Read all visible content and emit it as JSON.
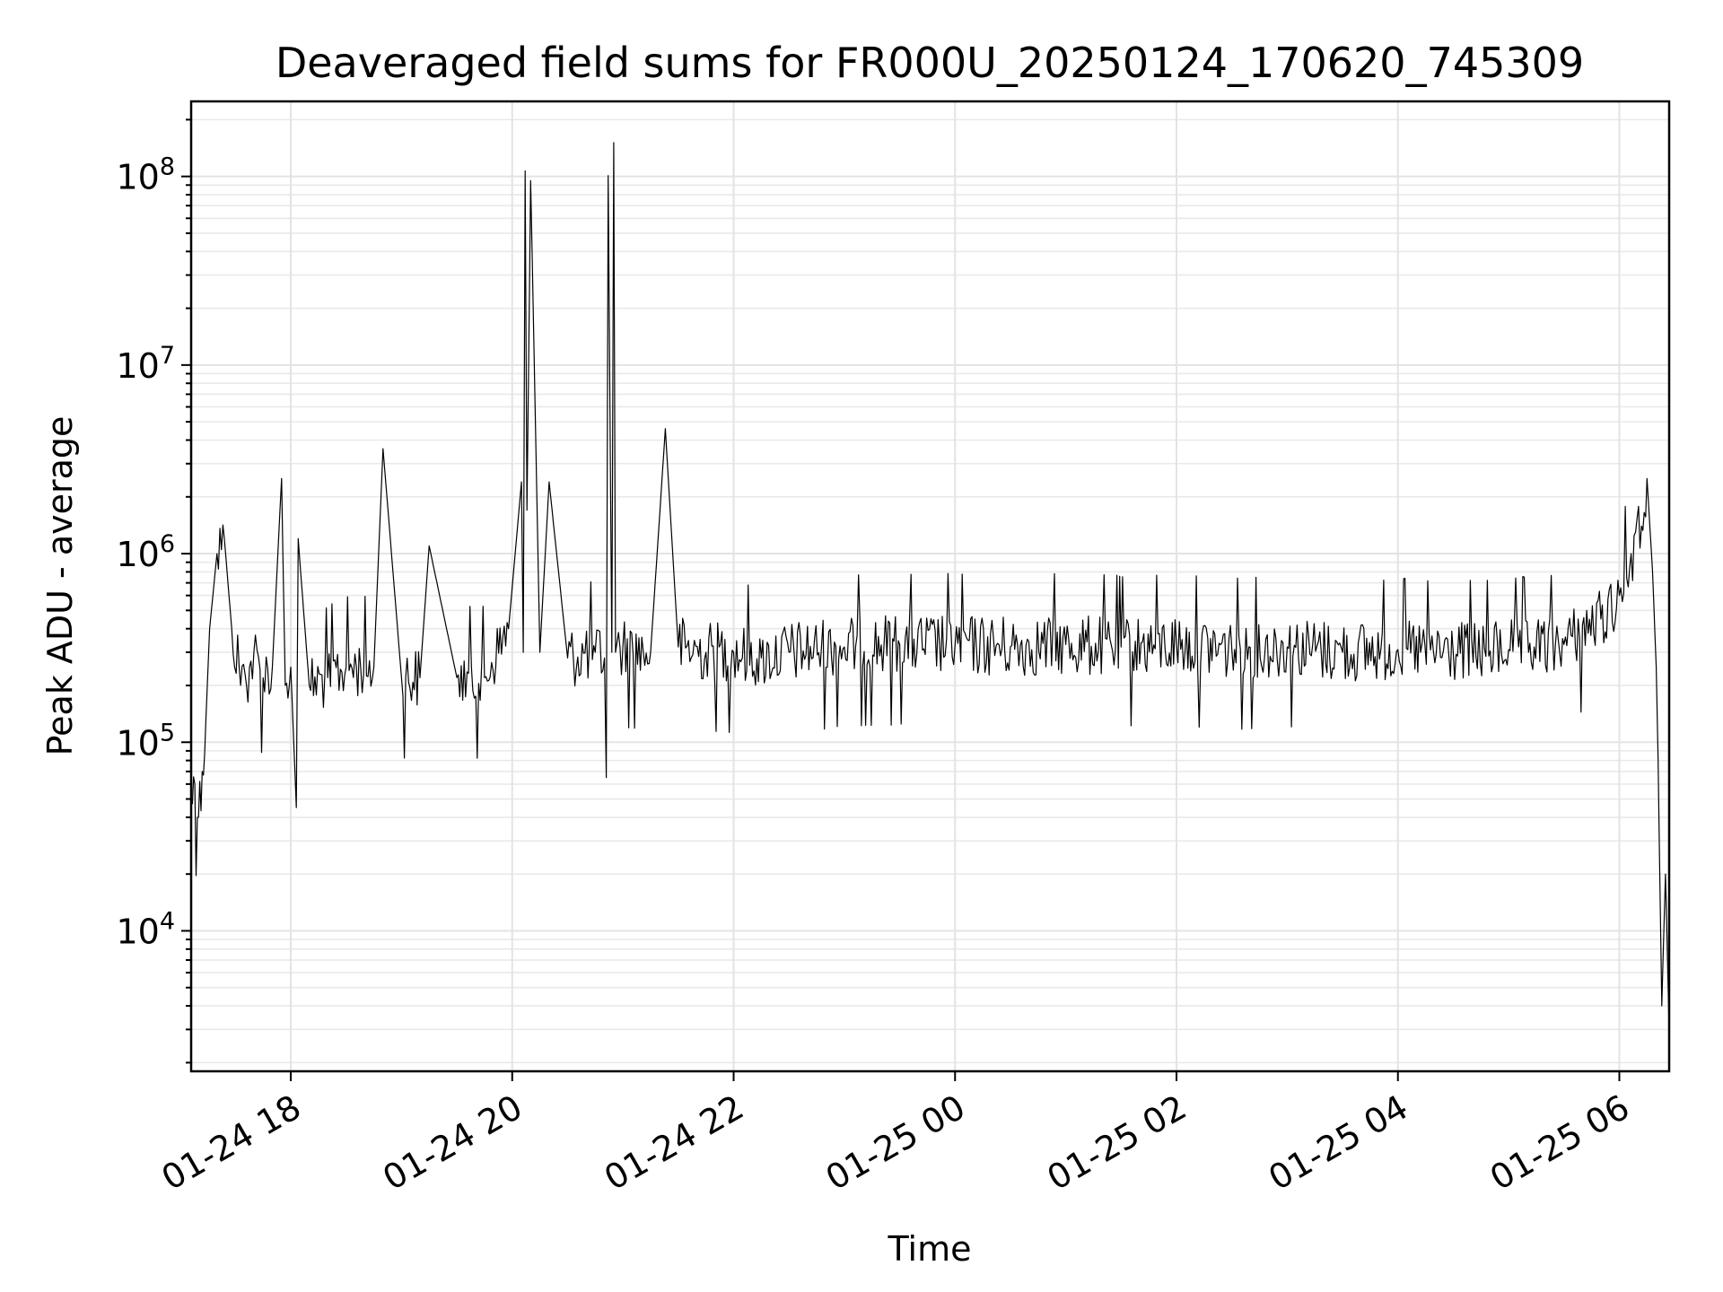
{
  "chart_data": {
    "type": "line",
    "title": "Deaveraged field sums for FR000U_20250124_170620_745309",
    "xlabel": "Time",
    "ylabel": "Peak ADU - average",
    "yscale": "log",
    "grid": true,
    "xlim": [
      "2025-01-24 17:06",
      "2025-01-25 06:27"
    ],
    "ylim": [
      1800,
      250000000
    ],
    "x_ticks": [
      {
        "value": "2025-01-24 18:00",
        "label": "01-24 18"
      },
      {
        "value": "2025-01-24 20:00",
        "label": "01-24 20"
      },
      {
        "value": "2025-01-24 22:00",
        "label": "01-24 22"
      },
      {
        "value": "2025-01-25 00:00",
        "label": "01-25 00"
      },
      {
        "value": "2025-01-25 02:00",
        "label": "01-25 02"
      },
      {
        "value": "2025-01-25 04:00",
        "label": "01-25 04"
      },
      {
        "value": "2025-01-25 06:00",
        "label": "01-25 06"
      }
    ],
    "y_ticks": [
      {
        "value": 10000,
        "base": "10",
        "exp": "4"
      },
      {
        "value": 100000,
        "base": "10",
        "exp": "5"
      },
      {
        "value": 1000000,
        "base": "10",
        "exp": "6"
      },
      {
        "value": 10000000,
        "base": "10",
        "exp": "7"
      },
      {
        "value": 100000000,
        "base": "10",
        "exp": "8"
      }
    ],
    "line_color": "#000000",
    "series": [
      {
        "x": [
          "2025-01-24 17:06",
          "2025-01-24 17:08",
          "2025-01-24 17:10",
          "2025-01-24 17:12",
          "2025-01-24 17:14",
          "2025-01-24 17:16",
          "2025-01-24 17:20",
          "2025-01-24 17:24",
          "2025-01-24 17:28",
          "2025-01-24 17:32",
          "2025-01-24 17:36",
          "2025-01-24 17:40",
          "2025-01-24 17:45",
          "2025-01-24 17:50",
          "2025-01-24 17:55",
          "2025-01-24 17:57",
          "2025-01-24 18:00",
          "2025-01-24 18:03",
          "2025-01-24 18:04",
          "2025-01-24 18:10",
          "2025-01-24 18:20",
          "2025-01-24 18:30",
          "2025-01-24 18:45",
          "2025-01-24 18:50",
          "2025-01-24 19:00",
          "2025-01-24 19:10",
          "2025-01-24 19:15",
          "2025-01-24 19:30",
          "2025-01-24 19:45",
          "2025-01-24 19:58",
          "2025-01-24 20:05",
          "2025-01-24 20:06",
          "2025-01-24 20:07",
          "2025-01-24 20:08",
          "2025-01-24 20:10",
          "2025-01-24 20:15",
          "2025-01-24 20:20",
          "2025-01-24 20:30",
          "2025-01-24 20:45",
          "2025-01-24 20:50",
          "2025-01-24 20:51",
          "2025-01-24 20:52",
          "2025-01-24 20:54",
          "2025-01-24 20:55",
          "2025-01-24 20:56",
          "2025-01-24 21:00",
          "2025-01-24 21:15",
          "2025-01-24 21:23",
          "2025-01-24 21:30",
          "2025-01-24 21:45",
          "2025-01-24 22:00",
          "2025-01-24 22:15",
          "2025-01-24 22:30",
          "2025-01-24 23:00",
          "2025-01-24 23:30",
          "2025-01-25 00:00",
          "2025-01-25 00:30",
          "2025-01-25 01:00",
          "2025-01-25 01:30",
          "2025-01-25 02:00",
          "2025-01-25 02:30",
          "2025-01-25 03:00",
          "2025-01-25 03:30",
          "2025-01-25 04:00",
          "2025-01-25 04:30",
          "2025-01-25 05:00",
          "2025-01-25 05:30",
          "2025-01-25 05:50",
          "2025-01-25 06:00",
          "2025-01-25 06:12",
          "2025-01-25 06:15",
          "2025-01-25 06:18",
          "2025-01-25 06:20",
          "2025-01-25 06:21",
          "2025-01-25 06:23",
          "2025-01-25 06:25",
          "2025-01-25 06:27"
        ],
        "y": [
          50000,
          60000,
          40000,
          70000,
          130000,
          400000,
          1000000,
          1200000,
          400000,
          250000,
          200000,
          300000,
          220000,
          250000,
          2500000,
          200000,
          250000,
          45000,
          1200000,
          200000,
          220000,
          250000,
          250000,
          3600000,
          220000,
          220000,
          1100000,
          220000,
          220000,
          400000,
          2400000,
          300000,
          107000000,
          1700000,
          95000000,
          300000,
          2400000,
          280000,
          300000,
          280000,
          65000,
          101000000,
          300000,
          151000000,
          300000,
          320000,
          300000,
          4600000,
          320000,
          300000,
          300000,
          280000,
          300000,
          320000,
          330000,
          330000,
          320000,
          330000,
          320000,
          330000,
          310000,
          320000,
          300000,
          310000,
          300000,
          310000,
          330000,
          450000,
          600000,
          1400000,
          2500000,
          800000,
          250000,
          80000,
          4000,
          20000,
          3000
        ]
      }
    ]
  }
}
